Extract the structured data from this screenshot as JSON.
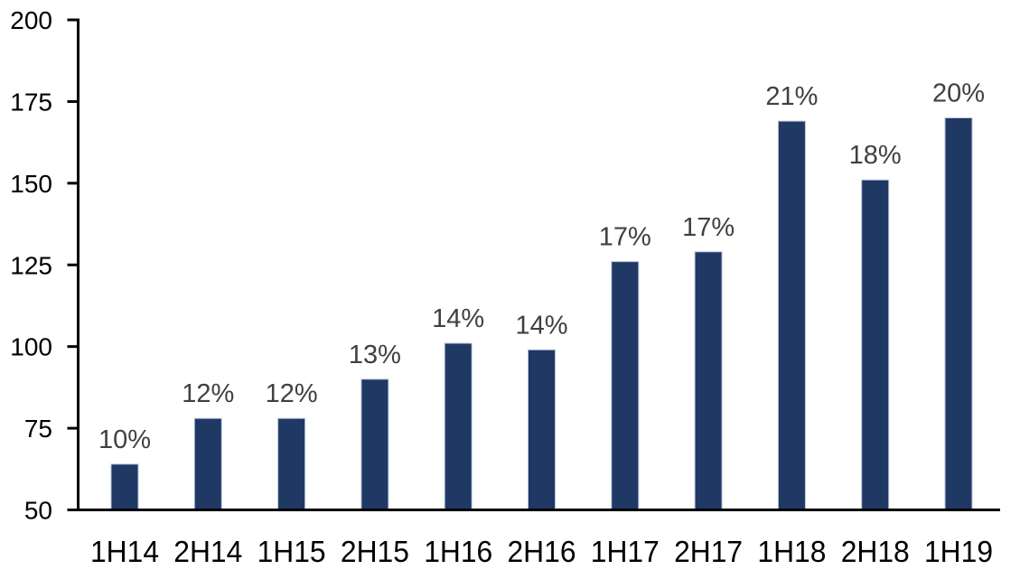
{
  "chart_data": {
    "type": "bar",
    "title": "",
    "xlabel": "",
    "ylabel": "",
    "categories": [
      "1H14",
      "2H14",
      "1H15",
      "2H15",
      "1H16",
      "2H16",
      "1H17",
      "2H17",
      "1H18",
      "2H18",
      "1H19"
    ],
    "values": [
      64,
      78,
      78,
      90,
      101,
      99,
      126,
      129,
      169,
      151,
      170
    ],
    "bar_labels": [
      "10%",
      "12%",
      "12%",
      "13%",
      "14%",
      "14%",
      "17%",
      "17%",
      "21%",
      "18%",
      "20%"
    ],
    "ylim": [
      50,
      200
    ],
    "yticks": [
      50,
      75,
      100,
      125,
      150,
      175,
      200
    ],
    "grid": false,
    "legend": null,
    "colors": {
      "bar_fill": "#1F3864",
      "bar_border": "#B7C4DA",
      "value_label": "#404040",
      "axis": "#000000",
      "background": "#FFFFFF"
    }
  }
}
